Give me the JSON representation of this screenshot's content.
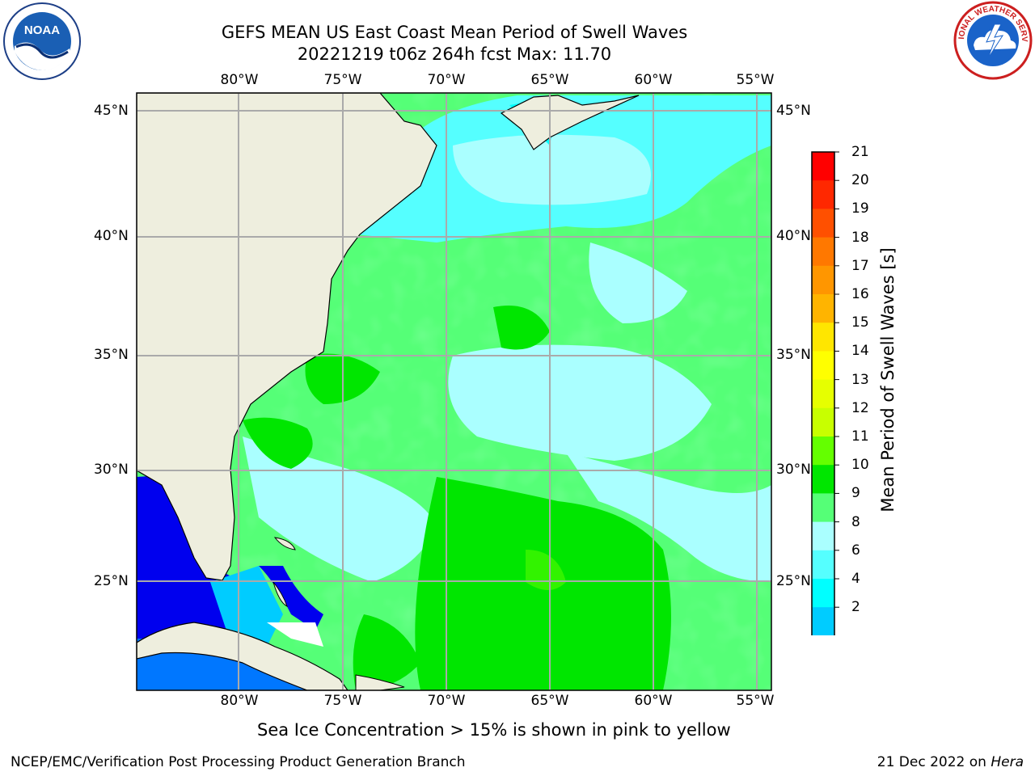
{
  "header": {
    "title_line1": "GEFS MEAN US East Coast Mean Period of Swell Waves",
    "title_line2": "20221219 t06z 264h fcst   Max: 11.70"
  },
  "map": {
    "lon_labels": [
      "80°W",
      "75°W",
      "70°W",
      "65°W",
      "60°W",
      "55°W"
    ],
    "lat_labels": [
      "45°N",
      "40°N",
      "35°N",
      "30°N",
      "25°N"
    ],
    "colors": {
      "land": "#EEEEDE",
      "frame": "#000000",
      "grid": "#AAAAAA",
      "coast": "#000000"
    }
  },
  "colorbar": {
    "title": "Mean Period of Swell Waves [s]",
    "tick_labels": [
      "21",
      "20",
      "19",
      "18",
      "17",
      "16",
      "15",
      "14",
      "13",
      "12",
      "11",
      "10",
      "9",
      "8",
      "6",
      "4",
      "2"
    ],
    "colors": [
      "#FF0000",
      "#FF2800",
      "#FF5000",
      "#FF7800",
      "#FF9600",
      "#FFB400",
      "#FFE600",
      "#FFFF00",
      "#E6FF00",
      "#C8FF00",
      "#64FF00",
      "#00E600",
      "#55FF77",
      "#AAFFFF",
      "#55FFFF",
      "#00FFFF",
      "#00CCFF",
      "#0077FF"
    ],
    "extend_color": "#0000EE"
  },
  "footer": {
    "note": "Sea Ice Concentration > 15% is shown in pink to yellow",
    "left": "NCEP/EMC/Verification Post Processing Product Generation Branch",
    "right_date": "21 Dec 2022 on ",
    "right_host": "Hera"
  },
  "logos": {
    "noaa_text": "NOAA",
    "nws_text": "NATIONAL WEATHER SERVICE"
  }
}
